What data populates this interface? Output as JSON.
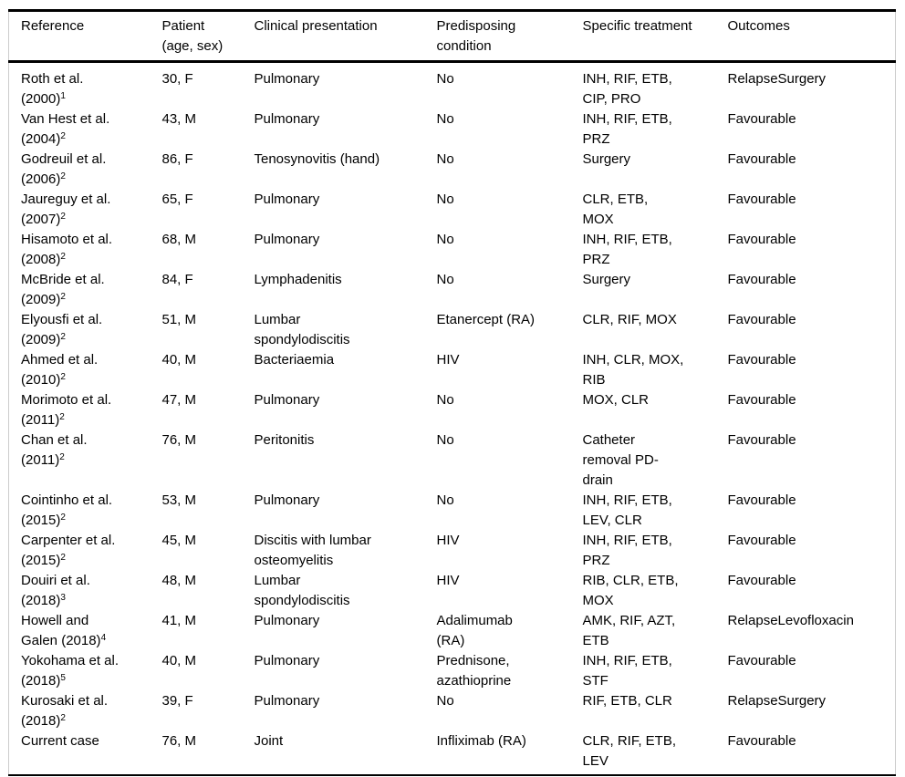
{
  "table": {
    "columns": [
      "Reference",
      "Patient\n(age, sex)",
      "Clinical presentation",
      "Predisposing\ncondition",
      "Specific treatment",
      "Outcomes"
    ],
    "rows": [
      {
        "reference": "Roth et al.\n(2000)",
        "reference_sup": "1",
        "patient": "30, F",
        "presentation": "Pulmonary",
        "predisposing": "No",
        "treatment": "INH, RIF, ETB,\nCIP, PRO",
        "outcome": "RelapseSurgery"
      },
      {
        "reference": "Van Hest et al.\n(2004)",
        "reference_sup": "2",
        "patient": "43, M",
        "presentation": "Pulmonary",
        "predisposing": "No",
        "treatment": "INH, RIF, ETB,\nPRZ",
        "outcome": "Favourable"
      },
      {
        "reference": "Godreuil et al.\n(2006)",
        "reference_sup": "2",
        "patient": "86, F",
        "presentation": "Tenosynovitis (hand)",
        "predisposing": "No",
        "treatment": "Surgery",
        "outcome": "Favourable"
      },
      {
        "reference": "Jaureguy et al.\n(2007)",
        "reference_sup": "2",
        "patient": "65, F",
        "presentation": "Pulmonary",
        "predisposing": "No",
        "treatment": "CLR, ETB,\nMOX",
        "outcome": "Favourable"
      },
      {
        "reference": "Hisamoto et al.\n(2008)",
        "reference_sup": "2",
        "patient": "68, M",
        "presentation": "Pulmonary",
        "predisposing": "No",
        "treatment": "INH, RIF, ETB,\nPRZ",
        "outcome": "Favourable"
      },
      {
        "reference": "McBride et al.\n(2009)",
        "reference_sup": "2",
        "patient": "84, F",
        "presentation": "Lymphadenitis",
        "predisposing": "No",
        "treatment": "Surgery",
        "outcome": "Favourable"
      },
      {
        "reference": "Elyousfi et al.\n(2009)",
        "reference_sup": "2",
        "patient": "51, M",
        "presentation": "Lumbar\nspondylodiscitis",
        "predisposing": "Etanercept (RA)",
        "treatment": "CLR, RIF, MOX",
        "outcome": "Favourable"
      },
      {
        "reference": "Ahmed et al.\n(2010)",
        "reference_sup": "2",
        "patient": "40, M",
        "presentation": "Bacteriaemia",
        "predisposing": "HIV",
        "treatment": "INH, CLR, MOX,\nRIB",
        "outcome": "Favourable"
      },
      {
        "reference": "Morimoto et al.\n(2011)",
        "reference_sup": "2",
        "patient": "47, M",
        "presentation": "Pulmonary",
        "predisposing": "No",
        "treatment": "MOX, CLR",
        "outcome": "Favourable"
      },
      {
        "reference": "Chan et al.\n(2011)",
        "reference_sup": "2",
        "patient": "76, M",
        "presentation": "Peritonitis",
        "predisposing": "No",
        "treatment": "Catheter\nremoval PD-\ndrain",
        "outcome": "Favourable"
      },
      {
        "reference": "Cointinho et al.\n(2015)",
        "reference_sup": "2",
        "patient": "53, M",
        "presentation": "Pulmonary",
        "predisposing": "No",
        "treatment": "INH, RIF, ETB,\nLEV, CLR",
        "outcome": "Favourable"
      },
      {
        "reference": "Carpenter et al.\n(2015)",
        "reference_sup": "2",
        "patient": "45, M",
        "presentation": "Discitis with lumbar\nosteomyelitis",
        "predisposing": "HIV",
        "treatment": "INH, RIF, ETB,\nPRZ",
        "outcome": "Favourable"
      },
      {
        "reference": "Douiri et al.\n(2018)",
        "reference_sup": "3",
        "patient": "48, M",
        "presentation": "Lumbar\nspondylodiscitis",
        "predisposing": "HIV",
        "treatment": "RIB, CLR, ETB,\nMOX",
        "outcome": "Favourable"
      },
      {
        "reference": "Howell and\nGalen (2018)",
        "reference_sup": "4",
        "patient": "41, M",
        "presentation": "Pulmonary",
        "predisposing": "Adalimumab\n(RA)",
        "treatment": "AMK, RIF, AZT,\nETB",
        "outcome": "RelapseLevofloxacin"
      },
      {
        "reference": "Yokohama et al.\n(2018)",
        "reference_sup": "5",
        "patient": "40, M",
        "presentation": "Pulmonary",
        "predisposing": "Prednisone,\nazathioprine",
        "treatment": "INH, RIF, ETB,\nSTF",
        "outcome": "Favourable"
      },
      {
        "reference": "Kurosaki et al.\n(2018)",
        "reference_sup": "2",
        "patient": "39, F",
        "presentation": "Pulmonary",
        "predisposing": "No",
        "treatment": "RIF, ETB, CLR",
        "outcome": "RelapseSurgery"
      },
      {
        "reference": "Current case",
        "reference_sup": "",
        "patient": "76, M",
        "presentation": "Joint",
        "predisposing": "Infliximab (RA)",
        "treatment": "CLR, RIF, ETB,\nLEV",
        "outcome": "Favourable"
      }
    ]
  },
  "colors": {
    "rule": "#000000",
    "side_rule": "#cccccc",
    "text": "#000000",
    "background": "#ffffff"
  }
}
